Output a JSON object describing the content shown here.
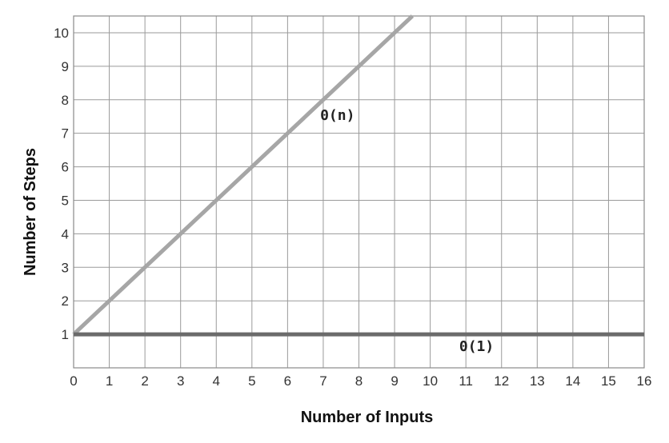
{
  "chart_data": {
    "type": "line",
    "xlabel": "Number of Inputs",
    "ylabel": "Number of Steps",
    "xlim": [
      0,
      16
    ],
    "ylim": [
      0,
      10.5
    ],
    "x_ticks": [
      0,
      1,
      2,
      3,
      4,
      5,
      6,
      7,
      8,
      9,
      10,
      11,
      12,
      13,
      14,
      15,
      16
    ],
    "y_ticks": [
      1,
      2,
      3,
      4,
      5,
      6,
      7,
      8,
      9,
      10
    ],
    "grid": true,
    "series": [
      {
        "name": "0(n)",
        "color": "#a6a6a6",
        "x": [
          0,
          9.5
        ],
        "y": [
          1,
          10.5
        ],
        "label_at": [
          7.4,
          7.4
        ]
      },
      {
        "name": "0(1)",
        "color": "#6b6b6b",
        "x": [
          0,
          16
        ],
        "y": [
          1,
          1
        ],
        "label_at": [
          11.3,
          0.5
        ]
      }
    ]
  }
}
